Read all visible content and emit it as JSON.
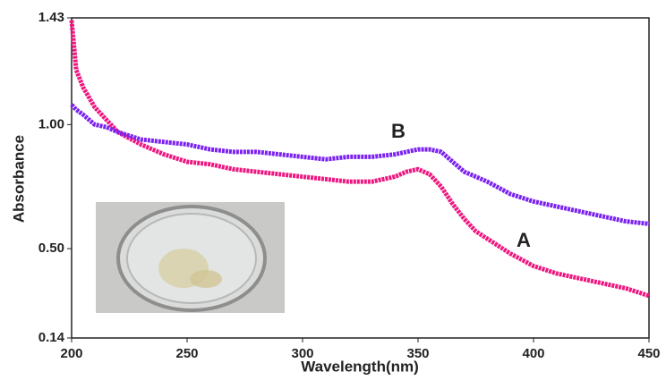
{
  "chart_data": {
    "type": "line",
    "x_label": "Wavelength(nm)",
    "y_label": "Absorbance",
    "x": [
      200,
      202,
      205,
      210,
      215,
      220,
      230,
      240,
      250,
      260,
      270,
      280,
      290,
      300,
      310,
      320,
      330,
      340,
      345,
      350,
      355,
      360,
      365,
      370,
      375,
      380,
      390,
      400,
      410,
      420,
      430,
      440,
      450
    ],
    "series": [
      {
        "name": "A",
        "color": "#ee1680",
        "values": [
          1.42,
          1.22,
          1.15,
          1.07,
          1.02,
          0.97,
          0.92,
          0.88,
          0.85,
          0.84,
          0.82,
          0.81,
          0.8,
          0.79,
          0.78,
          0.77,
          0.77,
          0.79,
          0.81,
          0.82,
          0.8,
          0.75,
          0.68,
          0.62,
          0.57,
          0.54,
          0.48,
          0.43,
          0.4,
          0.38,
          0.36,
          0.34,
          0.31
        ]
      },
      {
        "name": "B",
        "color": "#7b22f0",
        "values": [
          1.08,
          1.06,
          1.04,
          1.0,
          0.99,
          0.97,
          0.94,
          0.93,
          0.92,
          0.9,
          0.89,
          0.89,
          0.88,
          0.87,
          0.86,
          0.87,
          0.87,
          0.88,
          0.89,
          0.9,
          0.9,
          0.89,
          0.85,
          0.81,
          0.79,
          0.77,
          0.72,
          0.69,
          0.67,
          0.65,
          0.63,
          0.61,
          0.6
        ]
      }
    ],
    "xlim": [
      200,
      450
    ],
    "xticks": [
      200,
      250,
      300,
      350,
      400,
      450
    ],
    "ylim": [
      0.14,
      1.43
    ],
    "yticks": [
      0.14,
      {
        "value": 0.5,
        "label": "0.50"
      },
      {
        "value": 1,
        "label": "1.00"
      },
      1.43
    ]
  }
}
